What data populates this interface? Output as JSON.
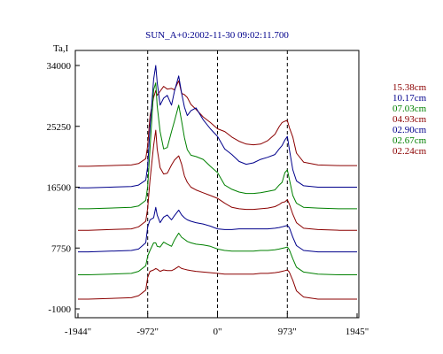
{
  "chart_data": {
    "type": "line",
    "title": "SUN_A+0:2002-11-30 09:02:11.700",
    "ylabel": "Ta,I",
    "xlabel": "",
    "xlim": [
      -1944,
      1945
    ],
    "ylim": [
      -1000,
      34000
    ],
    "grid": false,
    "legend_placement": "right",
    "x_ticks": [
      {
        "value": -1944,
        "label": "-1944\""
      },
      {
        "value": -972,
        "label": "-972\""
      },
      {
        "value": 0,
        "label": "0\""
      },
      {
        "value": 973,
        "label": "973\""
      },
      {
        "value": 1945,
        "label": "1945\""
      }
    ],
    "y_ticks": [
      {
        "value": 34000,
        "label": "34000"
      },
      {
        "value": 25250,
        "label": "25250"
      },
      {
        "value": 16500,
        "label": "16500"
      },
      {
        "value": 7750,
        "label": "7750"
      },
      {
        "value": -1000,
        "label": "-1000"
      }
    ],
    "vertical_markers": [
      -972,
      0,
      973
    ],
    "x": [
      -1944,
      -1800,
      -1500,
      -1200,
      -1100,
      -1000,
      -972,
      -940,
      -890,
      -860,
      -840,
      -800,
      -750,
      -700,
      -640,
      -600,
      -540,
      -500,
      -460,
      -420,
      -370,
      -300,
      -200,
      -100,
      0,
      100,
      200,
      300,
      400,
      500,
      600,
      700,
      800,
      860,
      900,
      940,
      973,
      1000,
      1050,
      1100,
      1200,
      1400,
      1700,
      1945
    ],
    "series": [
      {
        "name": "15.38cm",
        "color": "#8b0000",
        "values": [
          19500,
          19500,
          19600,
          19700,
          19900,
          20600,
          22500,
          26700,
          29400,
          30400,
          29700,
          30300,
          31000,
          30600,
          30700,
          30500,
          31800,
          30000,
          29800,
          29400,
          28400,
          27700,
          26600,
          25800,
          24900,
          24500,
          23700,
          23100,
          22700,
          22600,
          22700,
          23200,
          24100,
          25200,
          25800,
          26000,
          26100,
          25100,
          23700,
          21400,
          20100,
          19700,
          19600,
          19600
        ]
      },
      {
        "name": "10.17cm",
        "color": "#00008b",
        "values": [
          16400,
          16400,
          16500,
          16600,
          16800,
          17500,
          19500,
          25000,
          32000,
          34000,
          31600,
          28300,
          29300,
          29700,
          28300,
          30300,
          32500,
          30000,
          28000,
          26800,
          27500,
          27900,
          26200,
          24900,
          23800,
          22000,
          21200,
          20200,
          19800,
          20000,
          20500,
          20800,
          21200,
          22000,
          22500,
          23300,
          23800,
          22000,
          19000,
          17400,
          16700,
          16500,
          16500,
          16500
        ]
      },
      {
        "name": "07.03cm",
        "color": "#008000",
        "values": [
          13400,
          13400,
          13500,
          13600,
          13800,
          14600,
          16600,
          22000,
          30500,
          31500,
          28200,
          24500,
          22000,
          22200,
          24500,
          26000,
          28300,
          26000,
          23600,
          21900,
          21100,
          20900,
          20500,
          19500,
          18600,
          16800,
          16200,
          15800,
          15600,
          15600,
          15700,
          15900,
          16100,
          16800,
          17200,
          18600,
          19000,
          17700,
          15300,
          14200,
          13600,
          13500,
          13400,
          13400
        ]
      },
      {
        "name": "04.93cm",
        "color": "#8b0000",
        "values": [
          10300,
          10300,
          10400,
          10500,
          10800,
          11600,
          13500,
          17500,
          22500,
          24700,
          22000,
          19300,
          18400,
          18500,
          19700,
          20400,
          21000,
          19800,
          18100,
          17200,
          16500,
          16100,
          15700,
          15300,
          14900,
          14200,
          13600,
          13400,
          13300,
          13300,
          13400,
          13500,
          13700,
          14000,
          14300,
          14400,
          14700,
          14100,
          12600,
          11400,
          10600,
          10400,
          10300,
          10300
        ]
      },
      {
        "name": "02.90cm",
        "color": "#00008b",
        "values": [
          7200,
          7200,
          7300,
          7400,
          7600,
          8500,
          10800,
          11800,
          12100,
          13600,
          12500,
          11400,
          12200,
          12500,
          11800,
          12400,
          13200,
          12500,
          12100,
          11800,
          11600,
          11400,
          11200,
          10900,
          10500,
          10400,
          10400,
          10500,
          10500,
          10500,
          10500,
          10500,
          10600,
          10700,
          10800,
          10900,
          11000,
          10700,
          9300,
          8100,
          7400,
          7200,
          7200,
          7200
        ]
      },
      {
        "name": "02.67cm",
        "color": "#008000",
        "values": [
          3900,
          3900,
          4000,
          4100,
          4400,
          5200,
          6600,
          7400,
          8500,
          8500,
          8000,
          7900,
          8600,
          8300,
          8000,
          8900,
          9900,
          9300,
          9000,
          8700,
          8500,
          8300,
          8200,
          8000,
          7600,
          7400,
          7300,
          7300,
          7300,
          7300,
          7400,
          7400,
          7500,
          7600,
          7700,
          7800,
          7900,
          7500,
          6200,
          5000,
          4300,
          4000,
          3900,
          3900
        ]
      },
      {
        "name": "02.24cm",
        "color": "#8b0000",
        "values": [
          400,
          400,
          500,
          600,
          900,
          1700,
          3500,
          4400,
          4600,
          4800,
          4700,
          4400,
          4600,
          4500,
          4500,
          4700,
          5100,
          4800,
          4700,
          4600,
          4500,
          4400,
          4300,
          4200,
          4100,
          4000,
          4000,
          4000,
          4000,
          4000,
          4100,
          4100,
          4200,
          4300,
          4400,
          4500,
          4600,
          4300,
          3100,
          1600,
          700,
          400,
          400,
          400
        ]
      }
    ]
  }
}
